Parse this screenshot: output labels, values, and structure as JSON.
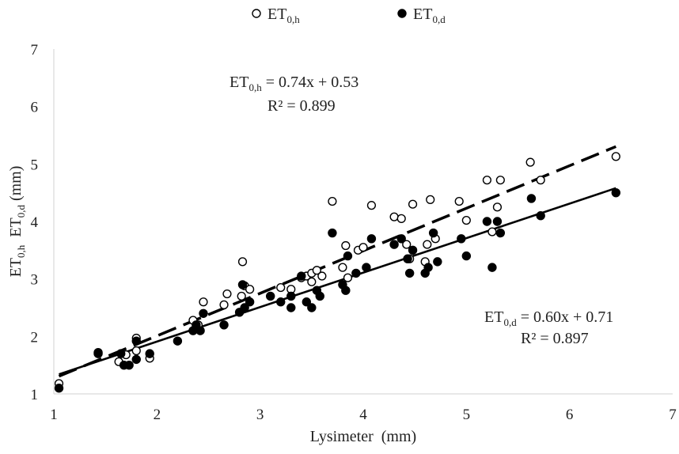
{
  "chart_data": {
    "type": "scatter",
    "xlabel": "Lysimeter  (mm)",
    "ylabel": {
      "p1": "ET",
      "p1_sub": "0,h",
      "p2": "ET",
      "p2_sub": "0,d",
      "p3": " (mm)"
    },
    "xlim": [
      1,
      7
    ],
    "ylim": [
      1,
      7
    ],
    "xticks": [
      "1",
      "2",
      "3",
      "4",
      "5",
      "6",
      "7"
    ],
    "yticks": [
      "1",
      "2",
      "3",
      "4",
      "5",
      "6",
      "7"
    ],
    "grid": false,
    "legend_position": "top-center",
    "series": [
      {
        "legend": {
          "main": "ET",
          "sub": "0,h"
        },
        "marker": "open-circle",
        "equation": {
          "lhs": "ET",
          "lhs_sub": "0,h",
          "rhs": " = 0.74x + 0.53",
          "r2": "R² = 0.899"
        },
        "trend": {
          "slope": 0.74,
          "intercept": 0.53,
          "x_range": [
            1.05,
            6.45
          ],
          "style": "dashed"
        },
        "points": [
          [
            1.05,
            1.18
          ],
          [
            1.63,
            1.56
          ],
          [
            1.7,
            1.68
          ],
          [
            1.8,
            1.97
          ],
          [
            1.8,
            1.75
          ],
          [
            1.93,
            1.62
          ],
          [
            2.35,
            2.28
          ],
          [
            2.4,
            2.2
          ],
          [
            2.45,
            2.6
          ],
          [
            2.65,
            2.55
          ],
          [
            2.68,
            2.74
          ],
          [
            2.82,
            2.7
          ],
          [
            2.83,
            3.3
          ],
          [
            2.85,
            2.88
          ],
          [
            2.9,
            2.82
          ],
          [
            3.2,
            2.85
          ],
          [
            3.3,
            2.82
          ],
          [
            3.4,
            3.02
          ],
          [
            3.45,
            3.05
          ],
          [
            3.5,
            2.95
          ],
          [
            3.5,
            3.1
          ],
          [
            3.55,
            3.15
          ],
          [
            3.6,
            3.05
          ],
          [
            3.7,
            4.35
          ],
          [
            3.8,
            3.2
          ],
          [
            3.83,
            3.58
          ],
          [
            3.85,
            3.02
          ],
          [
            3.95,
            3.5
          ],
          [
            4.0,
            3.55
          ],
          [
            4.08,
            4.28
          ],
          [
            4.3,
            4.08
          ],
          [
            4.37,
            4.05
          ],
          [
            4.42,
            3.6
          ],
          [
            4.45,
            3.35
          ],
          [
            4.48,
            4.3
          ],
          [
            4.6,
            3.3
          ],
          [
            4.62,
            3.6
          ],
          [
            4.65,
            4.38
          ],
          [
            4.7,
            3.7
          ],
          [
            4.93,
            4.35
          ],
          [
            5.0,
            4.02
          ],
          [
            5.2,
            4.72
          ],
          [
            5.25,
            3.82
          ],
          [
            5.3,
            4.25
          ],
          [
            5.33,
            4.72
          ],
          [
            5.62,
            5.03
          ],
          [
            5.72,
            4.72
          ],
          [
            6.45,
            5.13
          ]
        ]
      },
      {
        "legend": {
          "main": "ET",
          "sub": "0,d"
        },
        "marker": "filled-circle",
        "equation": {
          "lhs": "ET",
          "lhs_sub": "0,d",
          "rhs": " = 0.60x + 0.71",
          "r2": "R² = 0.897"
        },
        "trend": {
          "slope": 0.6,
          "intercept": 0.71,
          "x_range": [
            1.05,
            6.45
          ],
          "style": "solid"
        },
        "points": [
          [
            1.05,
            1.1
          ],
          [
            1.43,
            1.72
          ],
          [
            1.43,
            1.7
          ],
          [
            1.65,
            1.7
          ],
          [
            1.68,
            1.5
          ],
          [
            1.73,
            1.5
          ],
          [
            1.8,
            1.6
          ],
          [
            1.8,
            1.92
          ],
          [
            1.93,
            1.7
          ],
          [
            2.2,
            1.92
          ],
          [
            2.35,
            2.1
          ],
          [
            2.38,
            2.2
          ],
          [
            2.42,
            2.1
          ],
          [
            2.45,
            2.4
          ],
          [
            2.65,
            2.2
          ],
          [
            2.8,
            2.42
          ],
          [
            2.83,
            2.9
          ],
          [
            2.85,
            2.5
          ],
          [
            2.9,
            2.6
          ],
          [
            3.1,
            2.7
          ],
          [
            3.2,
            2.6
          ],
          [
            3.3,
            2.7
          ],
          [
            3.3,
            2.5
          ],
          [
            3.4,
            3.05
          ],
          [
            3.45,
            2.6
          ],
          [
            3.5,
            2.5
          ],
          [
            3.55,
            2.8
          ],
          [
            3.58,
            2.7
          ],
          [
            3.7,
            3.8
          ],
          [
            3.8,
            2.9
          ],
          [
            3.83,
            2.8
          ],
          [
            3.85,
            3.4
          ],
          [
            3.93,
            3.1
          ],
          [
            4.03,
            3.2
          ],
          [
            4.08,
            3.7
          ],
          [
            4.3,
            3.6
          ],
          [
            4.37,
            3.7
          ],
          [
            4.43,
            3.35
          ],
          [
            4.45,
            3.1
          ],
          [
            4.48,
            3.5
          ],
          [
            4.6,
            3.1
          ],
          [
            4.63,
            3.2
          ],
          [
            4.68,
            3.8
          ],
          [
            4.72,
            3.3
          ],
          [
            4.95,
            3.7
          ],
          [
            5.0,
            3.4
          ],
          [
            5.2,
            4.0
          ],
          [
            5.25,
            3.2
          ],
          [
            5.3,
            4.0
          ],
          [
            5.33,
            3.8
          ],
          [
            5.63,
            4.4
          ],
          [
            5.72,
            4.1
          ],
          [
            6.45,
            4.5
          ]
        ]
      }
    ]
  }
}
